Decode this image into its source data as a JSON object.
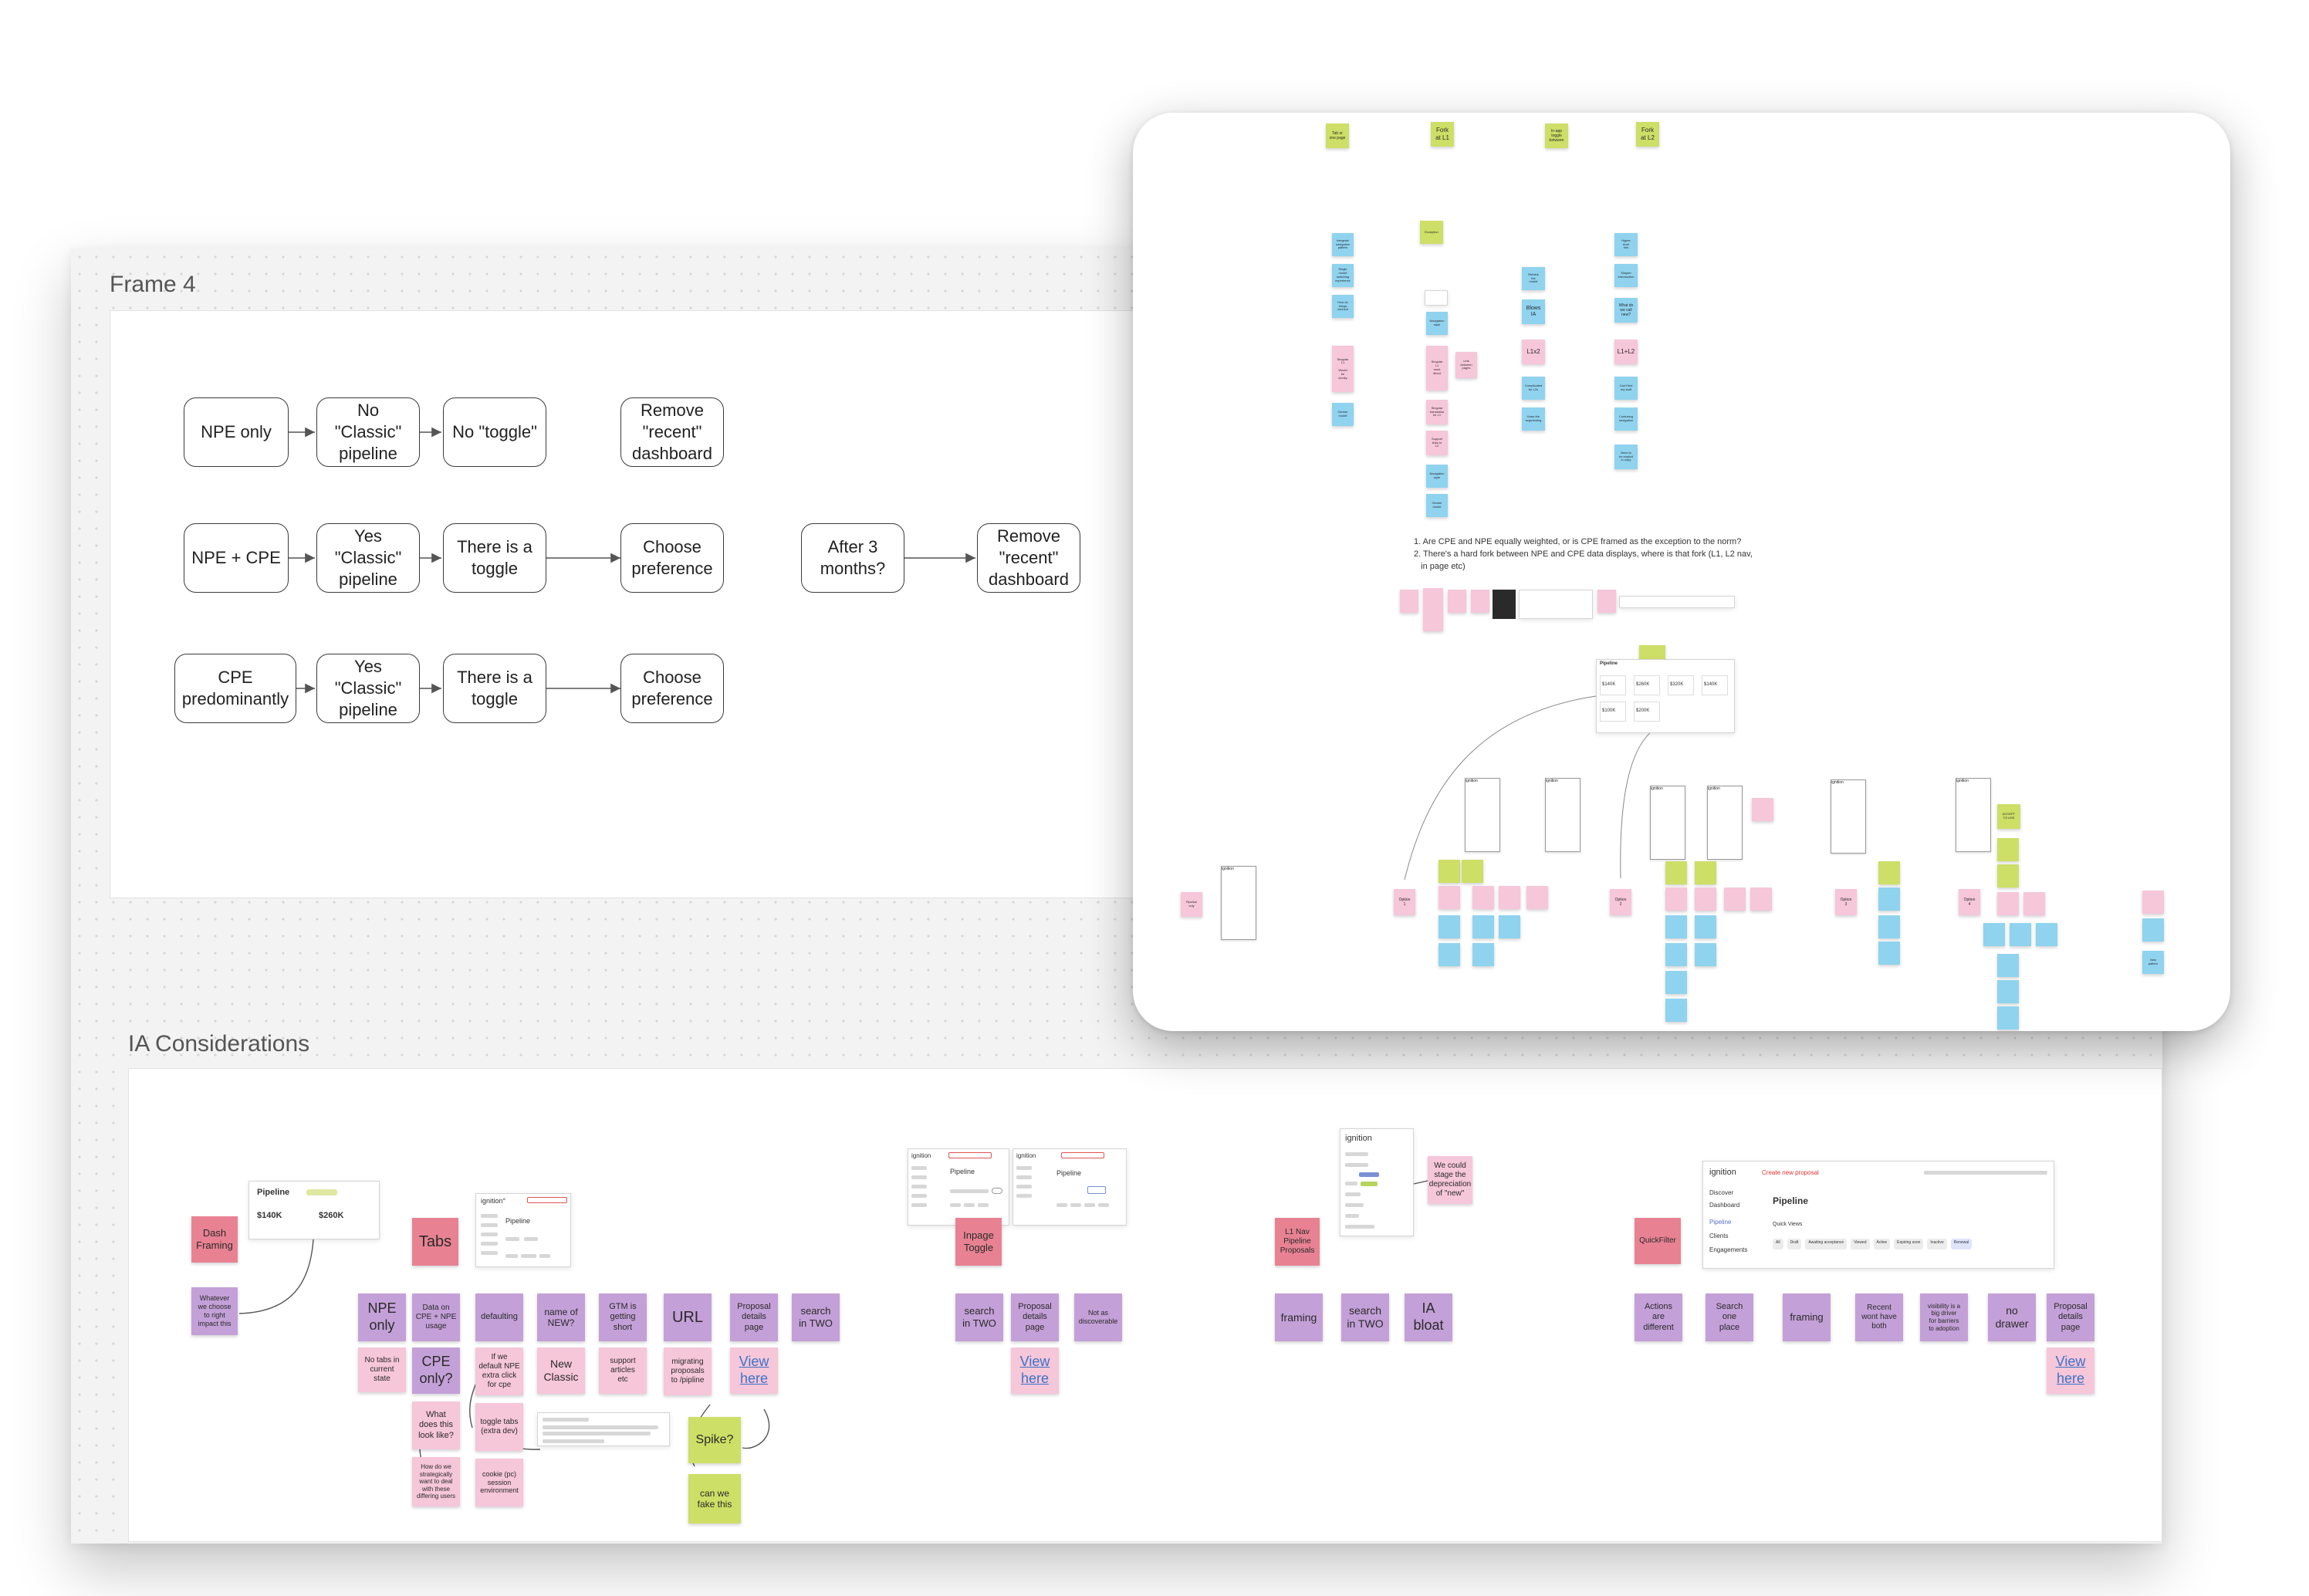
{
  "frame4": {
    "title": "Frame 4",
    "row1": [
      "NPE only",
      "No \"Classic\"\npipeline",
      "No \"toggle\"",
      "Remove\n\"recent\"\ndashboard"
    ],
    "row2": [
      "NPE + CPE",
      "Yes \"Classic\"\npipeline",
      "There is a\ntoggle",
      "Choose\npreference",
      "After 3\nmonths?",
      "Remove\n\"recent\"\ndashboard"
    ],
    "row3": [
      "CPE\npredominantly",
      "Yes \"Classic\"\npipeline",
      "There is a\ntoggle",
      "Choose\npreference"
    ]
  },
  "ia": {
    "title": "IA Considerations",
    "sec1": {
      "dash_framing": "Dash\nFraming",
      "whatever": "Whatever\nwe choose\nto right\nimpact this",
      "pipeline_title": "Pipeline",
      "pipeline_values": [
        "$140K",
        "$260K"
      ],
      "tabs": "Tabs",
      "npe_only": "NPE\nonly",
      "no_tabs": "No tabs in\ncurrent\nstate",
      "data_on": "Data on\nCPE + NPE\nusage",
      "cpe_only": "CPE\nonly?",
      "what_does": "What\ndoes this\nlook like?",
      "now_do": "How do we\nstrategically\nwant to deal\nwith these\ndiffering users",
      "defaulting": "defaulting",
      "if_we": "If we\ndefault NPE\nextra click\nfor cpe",
      "toggle_tabs": "toggle tabs\n(extra dev)",
      "cookie": "cookie (pc)\nsession\nenvironment",
      "name_of": "name of\nNEW?",
      "new_classic": "New\nClassic",
      "gtm": "GTM is\ngetting\nshort",
      "support": "support\narticles\netc",
      "url": "URL",
      "migrating": "migrating\nproposals\nto /pipline",
      "proposal_details": "Proposal\ndetails\npage",
      "view_here": "View\nhere",
      "search_two": "search\nin TWO",
      "spike": "Spike?",
      "can_we": "can we\nfake this"
    },
    "sec2": {
      "inpage_toggle": "Inpage\nToggle",
      "search_two": "search\nin TWO",
      "proposal_details": "Proposal\ndetails\npage",
      "not_disc": "Not as\ndiscoverable",
      "view_here": "View\nhere",
      "app_name": "ignition",
      "pipeline": "Pipeline"
    },
    "sec3": {
      "l1_nav": "L1 Nav\nPipeline\nProposals",
      "we_could": "We could\nstage the\ndepreciation\nof \"new\"",
      "framing": "framing",
      "search_two": "search\nin TWO",
      "ia_bloat": "IA\nbloat",
      "app_name": "ignition"
    },
    "sec4": {
      "quickfilter": "QuickFilter",
      "actions": "Actions\nare\ndifferent",
      "search_one": "Search\none\nplace",
      "framing": "framing",
      "recent": "Recent\nwont have\nboth",
      "visibility": "visibility is a\nbig driver\nfor barriers\nto adoption",
      "no_drawer": "no\ndrawer",
      "proposal_details": "Proposal\ndetails\npage",
      "view_here": "View\nhere",
      "app_name": "ignition",
      "create_btn": "Create new proposal",
      "page_title": "Pipeline",
      "nav": [
        "Discover",
        "Dashboard",
        "Pipeline",
        "Clients",
        "Engagements"
      ],
      "quick_views": "Quick Views",
      "chips": [
        "All",
        "Draft",
        "Awaiting acceptance",
        "Viewed",
        "Active",
        "Expiring soon",
        "Inactive",
        "Renewal"
      ]
    }
  },
  "panel": {
    "top_stickies": [
      "Tab or\none page",
      "Fork\nat L1",
      "In-app\ntoggle\nbetween",
      "Fork\nat L2"
    ],
    "left_cluster": [
      "Integrate\nnavigation\npattern",
      "Single\nmodel\nswitching\nexperience",
      "How do\nthings\nconnect",
      "Singular\nL1\n\nWould\nbe\nclunky",
      "Clearer\nmodel"
    ],
    "center_top": "Exception",
    "center_column": [
      "Singular\nL1\nmost\ndirect",
      "Singular\ntranslation\nfor L1",
      "Support\nlinks to\nL2",
      "Navigation\nstyle",
      "Clearer\nmodel"
    ],
    "link_pages": "Link\nbetween\npages",
    "col_l1x2": [
      "Rethink\nthe\nmodel",
      "Blows\nIA",
      "L1x2",
      "Complicated\nfor L2s",
      "Keep the\nsegmenting"
    ],
    "col_l1l2": [
      "Higher\nlevel\nfork",
      "Simpler\nintroduction",
      "What do\nwe call\nnew?",
      "L1+L2",
      "Can't find\nmy stuff",
      "Confusing\nnavigation",
      "Need to\nbe explicit\nin copy"
    ],
    "questions": [
      "1. Are CPE and NPE equally weighted, or is CPE framed as the exception to the norm?",
      "2. There's a hard fork between NPE and CPE data displays, where is that fork (L1, L2 nav,",
      "   in page etc)"
    ],
    "pipeline_header": "Pipeline",
    "pipeline_values": [
      "$140K",
      "$260K",
      "$320K",
      "$140K",
      "$100K",
      "$200K"
    ],
    "options": [
      "Option\n1",
      "Option\n2",
      "Option\n3",
      "Option\n4"
    ],
    "pipeline_only": "Pipeline\nonly",
    "app_name": "ignition",
    "accept_to_use": "ACCEPT\nTO USE",
    "new_pattern": "New\npattern"
  }
}
